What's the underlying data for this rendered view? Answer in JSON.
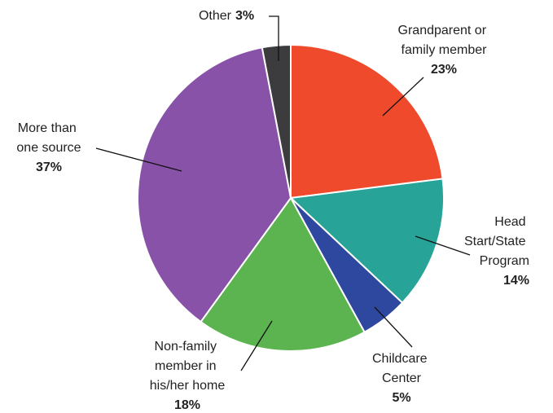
{
  "chart_data": {
    "type": "pie",
    "categories": [
      "Grandparent or family member",
      "Head Start/State Program",
      "Childcare Center",
      "Non-family member in his/her home",
      "More than one source",
      "Other"
    ],
    "values": [
      23,
      14,
      5,
      18,
      37,
      3
    ],
    "value_labels": [
      "23%",
      "14%",
      "5%",
      "18%",
      "37%",
      "3%"
    ],
    "colors": [
      "#ef4a2c",
      "#27a497",
      "#2e48a0",
      "#5bb450",
      "#8852a8",
      "#3c3c3e"
    ]
  }
}
